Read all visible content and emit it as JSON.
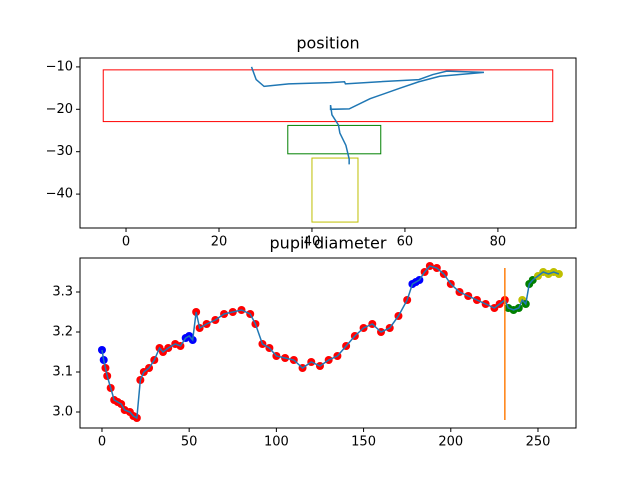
{
  "chart_data": [
    {
      "type": "line",
      "title": "position",
      "xlim": [
        -9.9,
        96.8
      ],
      "ylim": [
        -48,
        -7.9
      ],
      "xticks": [
        0,
        20,
        40,
        60,
        80
      ],
      "yticks": [
        {
          "value": -10,
          "label": "−10"
        },
        {
          "value": -20,
          "label": "−20"
        },
        {
          "value": -30,
          "label": "−30"
        },
        {
          "value": -40,
          "label": "−40"
        }
      ],
      "rects": [
        {
          "x": [
            -4.9,
            91.8
          ],
          "y": [
            -22.9,
            -10.7
          ],
          "color": "#ff0000"
        },
        {
          "x": [
            34.8,
            54.8
          ],
          "y": [
            -30.5,
            -23.8
          ],
          "color": "#008000"
        },
        {
          "x": [
            40,
            49.9
          ],
          "y": [
            -46.6,
            -31.5
          ],
          "color": "#bfbf00"
        }
      ],
      "series": [
        {
          "color": "#1f77b4",
          "x": [
            27,
            28,
            29.7,
            35,
            44,
            47,
            47.2,
            54.6,
            63,
            66,
            69,
            77,
            67.5,
            63,
            59,
            52.5,
            48,
            44,
            44,
            44.3,
            45.7,
            46,
            47.3,
            48,
            48
          ],
          "values": [
            -10,
            -13,
            -14.6,
            -14,
            -13.7,
            -13.5,
            -14,
            -13.5,
            -13,
            -11.8,
            -11,
            -11.3,
            -12.2,
            -13.5,
            -15,
            -17.5,
            -19.9,
            -20,
            -19,
            -21.3,
            -23.7,
            -25.6,
            -28.5,
            -31.7,
            -33
          ]
        }
      ]
    },
    {
      "type": "line",
      "title": "pupil diameter",
      "xlim": [
        -12.6,
        271.8
      ],
      "ylim": [
        2.96,
        3.385
      ],
      "xticks": [
        0,
        50,
        100,
        150,
        200,
        250
      ],
      "yticks": [
        {
          "value": 3,
          "label": "3.0"
        },
        3.1,
        3.2,
        3.3
      ],
      "vlines": [
        {
          "x": 231,
          "y": [
            2.98,
            3.36
          ],
          "color": "#ff7f0e"
        }
      ],
      "series": [
        {
          "color": "#1f77b4",
          "x": [
            0,
            1,
            2,
            3,
            5,
            7,
            9,
            11,
            13,
            16,
            18,
            20,
            22,
            24,
            27,
            30,
            33,
            35,
            38,
            42,
            45,
            48,
            50,
            52,
            54,
            56,
            60,
            65,
            70,
            75,
            80,
            85,
            88,
            92,
            96,
            100,
            105,
            110,
            115,
            120,
            125,
            130,
            135,
            140,
            145,
            150,
            155,
            160,
            165,
            170,
            175,
            178,
            180,
            182,
            185,
            188,
            192,
            196,
            200,
            205,
            210,
            215,
            220,
            225,
            228,
            231,
            233,
            236,
            239,
            241,
            243,
            245,
            247,
            250,
            253,
            256,
            259,
            262
          ],
          "values": [
            3.155,
            3.13,
            3.11,
            3.09,
            3.06,
            3.03,
            3.025,
            3.02,
            3.005,
            3.0,
            2.99,
            2.985,
            3.08,
            3.1,
            3.11,
            3.13,
            3.16,
            3.15,
            3.16,
            3.17,
            3.165,
            3.185,
            3.19,
            3.18,
            3.25,
            3.21,
            3.22,
            3.23,
            3.245,
            3.25,
            3.255,
            3.245,
            3.22,
            3.17,
            3.16,
            3.14,
            3.135,
            3.13,
            3.11,
            3.125,
            3.115,
            3.13,
            3.14,
            3.165,
            3.19,
            3.21,
            3.22,
            3.2,
            3.21,
            3.24,
            3.28,
            3.32,
            3.325,
            3.33,
            3.35,
            3.365,
            3.36,
            3.345,
            3.32,
            3.3,
            3.29,
            3.28,
            3.27,
            3.26,
            3.27,
            3.28,
            3.26,
            3.255,
            3.26,
            3.28,
            3.27,
            3.32,
            3.33,
            3.34,
            3.35,
            3.345,
            3.35,
            3.345
          ],
          "marker_colors": [
            "#0000ff",
            "#0000ff",
            "#ff0000",
            "#ff0000",
            "#ff0000",
            "#ff0000",
            "#ff0000",
            "#ff0000",
            "#ff0000",
            "#ff0000",
            "#ff0000",
            "#ff0000",
            "#ff0000",
            "#ff0000",
            "#ff0000",
            "#ff0000",
            "#ff0000",
            "#ff0000",
            "#ff0000",
            "#ff0000",
            "#ff0000",
            "#0000ff",
            "#0000ff",
            "#0000ff",
            "#ff0000",
            "#ff0000",
            "#ff0000",
            "#ff0000",
            "#ff0000",
            "#ff0000",
            "#ff0000",
            "#ff0000",
            "#ff0000",
            "#ff0000",
            "#ff0000",
            "#ff0000",
            "#ff0000",
            "#ff0000",
            "#ff0000",
            "#ff0000",
            "#ff0000",
            "#ff0000",
            "#ff0000",
            "#ff0000",
            "#ff0000",
            "#ff0000",
            "#ff0000",
            "#ff0000",
            "#ff0000",
            "#ff0000",
            "#ff0000",
            "#0000ff",
            "#0000ff",
            "#0000ff",
            "#ff0000",
            "#ff0000",
            "#ff0000",
            "#ff0000",
            "#ff0000",
            "#ff0000",
            "#ff0000",
            "#ff0000",
            "#ff0000",
            "#ff0000",
            "#ff0000",
            "#ff0000",
            "#008000",
            "#008000",
            "#008000",
            "#bfbf00",
            "#008000",
            "#008000",
            "#008000",
            "#bfbf00",
            "#bfbf00",
            "#bfbf00",
            "#bfbf00",
            "#bfbf00"
          ]
        }
      ]
    }
  ]
}
